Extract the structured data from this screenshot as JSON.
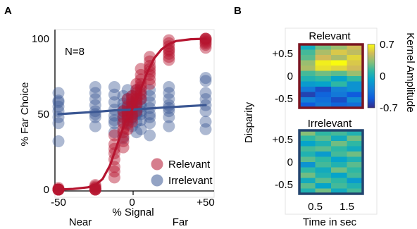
{
  "panels": {
    "a": {
      "letter": "A",
      "annotation": "N=8",
      "ylabel": "% Far Choice",
      "xlabel": "% Signal",
      "near_label": "Near",
      "far_label": "Far"
    },
    "b": {
      "letter": "B",
      "ylabel": "Disparity",
      "xlabel": "Time in sec",
      "colorbar_label": "Kernel Amplitude"
    }
  },
  "colors": {
    "relevant": "#b5142f",
    "irrelevant": "#3b5793",
    "relevant_frame": "#7a1420",
    "irrelevant_frame": "#22446e"
  },
  "chart_data": [
    {
      "type": "scatter",
      "panel": "A",
      "xlabel": "% Signal",
      "ylabel": "% Far Choice",
      "xlim": [
        -55,
        55
      ],
      "ylim": [
        0,
        100
      ],
      "xticks": [
        -50,
        0,
        50
      ],
      "xtick_labels": [
        "-50",
        "0",
        "+50"
      ],
      "yticks": [
        0,
        50,
        100
      ],
      "ytick_labels": [
        "0",
        "50",
        "100"
      ],
      "legend_position": "bottom-right",
      "series": [
        {
          "name": "Relevant",
          "points": [
            {
              "x": -50,
              "y": 0
            },
            {
              "x": -50,
              "y": 0
            },
            {
              "x": -50,
              "y": 0
            },
            {
              "x": -50,
              "y": 0
            },
            {
              "x": -50,
              "y": 0
            },
            {
              "x": -50,
              "y": 0
            },
            {
              "x": -50,
              "y": 1
            },
            {
              "x": -50,
              "y": 0
            },
            {
              "x": -25,
              "y": 0
            },
            {
              "x": -25,
              "y": 1
            },
            {
              "x": -25,
              "y": 0
            },
            {
              "x": -25,
              "y": 2
            },
            {
              "x": -25,
              "y": 0
            },
            {
              "x": -25,
              "y": 1
            },
            {
              "x": -25,
              "y": 3
            },
            {
              "x": -25,
              "y": 0
            },
            {
              "x": -12,
              "y": 8
            },
            {
              "x": -12,
              "y": 15
            },
            {
              "x": -12,
              "y": 20
            },
            {
              "x": -12,
              "y": 24
            },
            {
              "x": -12,
              "y": 30
            },
            {
              "x": -12,
              "y": 36
            },
            {
              "x": -12,
              "y": 12
            },
            {
              "x": -12,
              "y": 27
            },
            {
              "x": -6,
              "y": 28
            },
            {
              "x": -6,
              "y": 35
            },
            {
              "x": -6,
              "y": 40
            },
            {
              "x": -6,
              "y": 44
            },
            {
              "x": -6,
              "y": 48
            },
            {
              "x": -6,
              "y": 52
            },
            {
              "x": -6,
              "y": 32
            },
            {
              "x": -6,
              "y": 38
            },
            {
              "x": -3,
              "y": 40
            },
            {
              "x": -3,
              "y": 46
            },
            {
              "x": -3,
              "y": 50
            },
            {
              "x": -3,
              "y": 55
            },
            {
              "x": -3,
              "y": 60
            },
            {
              "x": -3,
              "y": 43
            },
            {
              "x": -3,
              "y": 52
            },
            {
              "x": -3,
              "y": 48
            },
            {
              "x": 0,
              "y": 45
            },
            {
              "x": 0,
              "y": 50
            },
            {
              "x": 0,
              "y": 55
            },
            {
              "x": 0,
              "y": 60
            },
            {
              "x": 0,
              "y": 48
            },
            {
              "x": 0,
              "y": 53
            },
            {
              "x": 0,
              "y": 58
            },
            {
              "x": 0,
              "y": 62
            },
            {
              "x": 3,
              "y": 52
            },
            {
              "x": 3,
              "y": 58
            },
            {
              "x": 3,
              "y": 62
            },
            {
              "x": 3,
              "y": 66
            },
            {
              "x": 3,
              "y": 70
            },
            {
              "x": 3,
              "y": 56
            },
            {
              "x": 3,
              "y": 64
            },
            {
              "x": 3,
              "y": 60
            },
            {
              "x": 6,
              "y": 60
            },
            {
              "x": 6,
              "y": 66
            },
            {
              "x": 6,
              "y": 70
            },
            {
              "x": 6,
              "y": 76
            },
            {
              "x": 6,
              "y": 80
            },
            {
              "x": 6,
              "y": 63
            },
            {
              "x": 6,
              "y": 73
            },
            {
              "x": 6,
              "y": 68
            },
            {
              "x": 12,
              "y": 70
            },
            {
              "x": 12,
              "y": 76
            },
            {
              "x": 12,
              "y": 80
            },
            {
              "x": 12,
              "y": 85
            },
            {
              "x": 12,
              "y": 82
            },
            {
              "x": 12,
              "y": 73
            },
            {
              "x": 12,
              "y": 78
            },
            {
              "x": 12,
              "y": 88
            },
            {
              "x": 25,
              "y": 86
            },
            {
              "x": 25,
              "y": 90
            },
            {
              "x": 25,
              "y": 93
            },
            {
              "x": 25,
              "y": 95
            },
            {
              "x": 25,
              "y": 97
            },
            {
              "x": 25,
              "y": 88
            },
            {
              "x": 25,
              "y": 92
            },
            {
              "x": 25,
              "y": 99
            },
            {
              "x": 50,
              "y": 94
            },
            {
              "x": 50,
              "y": 97
            },
            {
              "x": 50,
              "y": 99
            },
            {
              "x": 50,
              "y": 100
            },
            {
              "x": 50,
              "y": 100
            },
            {
              "x": 50,
              "y": 96
            },
            {
              "x": 50,
              "y": 98
            },
            {
              "x": 50,
              "y": 100
            }
          ],
          "fit_curve": [
            {
              "x": -50,
              "y": 0
            },
            {
              "x": -40,
              "y": 0.4
            },
            {
              "x": -30,
              "y": 1.5
            },
            {
              "x": -25,
              "y": 3
            },
            {
              "x": -20,
              "y": 7
            },
            {
              "x": -15,
              "y": 16
            },
            {
              "x": -10,
              "y": 30
            },
            {
              "x": -5,
              "y": 44
            },
            {
              "x": 0,
              "y": 53
            },
            {
              "x": 5,
              "y": 64
            },
            {
              "x": 10,
              "y": 77
            },
            {
              "x": 15,
              "y": 87
            },
            {
              "x": 20,
              "y": 93
            },
            {
              "x": 25,
              "y": 96.5
            },
            {
              "x": 30,
              "y": 98.5
            },
            {
              "x": 40,
              "y": 99.7
            },
            {
              "x": 50,
              "y": 100
            }
          ]
        },
        {
          "name": "Irrelevant",
          "points": [
            {
              "x": -50,
              "y": 32
            },
            {
              "x": -50,
              "y": 44
            },
            {
              "x": -50,
              "y": 48
            },
            {
              "x": -50,
              "y": 52
            },
            {
              "x": -50,
              "y": 55
            },
            {
              "x": -50,
              "y": 58
            },
            {
              "x": -50,
              "y": 64
            },
            {
              "x": -50,
              "y": 59
            },
            {
              "x": -25,
              "y": 42
            },
            {
              "x": -25,
              "y": 48
            },
            {
              "x": -25,
              "y": 52
            },
            {
              "x": -25,
              "y": 56
            },
            {
              "x": -25,
              "y": 60
            },
            {
              "x": -25,
              "y": 64
            },
            {
              "x": -25,
              "y": 68
            },
            {
              "x": -25,
              "y": 50
            },
            {
              "x": -12,
              "y": 38
            },
            {
              "x": -12,
              "y": 44
            },
            {
              "x": -12,
              "y": 49
            },
            {
              "x": -12,
              "y": 53
            },
            {
              "x": -12,
              "y": 58
            },
            {
              "x": -12,
              "y": 63
            },
            {
              "x": -12,
              "y": 68
            },
            {
              "x": -12,
              "y": 46
            },
            {
              "x": -6,
              "y": 34
            },
            {
              "x": -6,
              "y": 45
            },
            {
              "x": -6,
              "y": 50
            },
            {
              "x": -6,
              "y": 54
            },
            {
              "x": -6,
              "y": 57
            },
            {
              "x": -6,
              "y": 62
            },
            {
              "x": -6,
              "y": 48
            },
            {
              "x": -6,
              "y": 52
            },
            {
              "x": -3,
              "y": 44
            },
            {
              "x": -3,
              "y": 48
            },
            {
              "x": -3,
              "y": 51
            },
            {
              "x": -3,
              "y": 54
            },
            {
              "x": -3,
              "y": 60
            },
            {
              "x": -3,
              "y": 66
            },
            {
              "x": -3,
              "y": 49
            },
            {
              "x": -3,
              "y": 56
            },
            {
              "x": 0,
              "y": 42
            },
            {
              "x": 0,
              "y": 47
            },
            {
              "x": 0,
              "y": 50
            },
            {
              "x": 0,
              "y": 53
            },
            {
              "x": 0,
              "y": 57
            },
            {
              "x": 0,
              "y": 62
            },
            {
              "x": 0,
              "y": 55
            },
            {
              "x": 0,
              "y": 48
            },
            {
              "x": 3,
              "y": 38
            },
            {
              "x": 3,
              "y": 45
            },
            {
              "x": 3,
              "y": 50
            },
            {
              "x": 3,
              "y": 53
            },
            {
              "x": 3,
              "y": 56
            },
            {
              "x": 3,
              "y": 60
            },
            {
              "x": 3,
              "y": 66
            },
            {
              "x": 3,
              "y": 51
            },
            {
              "x": 6,
              "y": 40
            },
            {
              "x": 6,
              "y": 46
            },
            {
              "x": 6,
              "y": 52
            },
            {
              "x": 6,
              "y": 55
            },
            {
              "x": 6,
              "y": 60
            },
            {
              "x": 6,
              "y": 64
            },
            {
              "x": 6,
              "y": 50
            },
            {
              "x": 6,
              "y": 57
            },
            {
              "x": 12,
              "y": 36
            },
            {
              "x": 12,
              "y": 44
            },
            {
              "x": 12,
              "y": 50
            },
            {
              "x": 12,
              "y": 54
            },
            {
              "x": 12,
              "y": 58
            },
            {
              "x": 12,
              "y": 62
            },
            {
              "x": 12,
              "y": 66
            },
            {
              "x": 12,
              "y": 48
            },
            {
              "x": 25,
              "y": 42
            },
            {
              "x": 25,
              "y": 48
            },
            {
              "x": 25,
              "y": 52
            },
            {
              "x": 25,
              "y": 56
            },
            {
              "x": 25,
              "y": 60
            },
            {
              "x": 25,
              "y": 64
            },
            {
              "x": 25,
              "y": 68
            },
            {
              "x": 25,
              "y": 54
            },
            {
              "x": 50,
              "y": 40
            },
            {
              "x": 50,
              "y": 45
            },
            {
              "x": 50,
              "y": 52
            },
            {
              "x": 50,
              "y": 56
            },
            {
              "x": 50,
              "y": 60
            },
            {
              "x": 50,
              "y": 64
            },
            {
              "x": 50,
              "y": 72
            },
            {
              "x": 50,
              "y": 74
            }
          ],
          "fit_curve": [
            {
              "x": -50,
              "y": 50
            },
            {
              "x": -25,
              "y": 51.5
            },
            {
              "x": -12,
              "y": 52.5
            },
            {
              "x": 0,
              "y": 53
            },
            {
              "x": 12,
              "y": 53.8
            },
            {
              "x": 25,
              "y": 54.6
            },
            {
              "x": 50,
              "y": 56
            }
          ]
        }
      ]
    },
    {
      "type": "heatmap",
      "panel": "B",
      "title": "Relevant",
      "xlabel": "Time in sec",
      "ylabel": "Disparity",
      "x_range": [
        0,
        2
      ],
      "xticks": [
        0.5,
        1.5
      ],
      "xtick_labels": [
        "0.5",
        "1.5"
      ],
      "y_range": [
        -0.7,
        0.7
      ],
      "yticks": [
        0.5,
        0,
        -0.5
      ],
      "ytick_labels": [
        "+0.5",
        "0",
        "-0.5"
      ],
      "values": [
        [
          -0.05,
          0.2,
          0.3,
          0.45
        ],
        [
          0.1,
          0.35,
          0.5,
          0.4
        ],
        [
          0.15,
          0.45,
          0.35,
          0.55
        ],
        [
          0.3,
          0.65,
          0.7,
          0.5
        ],
        [
          0.35,
          0.6,
          0.55,
          0.45
        ],
        [
          0.1,
          0.2,
          0.15,
          0.3
        ],
        [
          0.0,
          0.05,
          -0.1,
          0.05
        ],
        [
          -0.15,
          -0.1,
          0.05,
          -0.2
        ],
        [
          -0.35,
          -0.55,
          -0.3,
          -0.2
        ],
        [
          -0.6,
          -0.45,
          -0.35,
          -0.5
        ],
        [
          -0.3,
          -0.4,
          -0.55,
          -0.25
        ],
        [
          -0.5,
          -0.35,
          -0.45,
          -0.4
        ]
      ]
    },
    {
      "type": "heatmap",
      "panel": "B",
      "title": "Irrelevant",
      "xlabel": "Time in sec",
      "ylabel": "Disparity",
      "x_range": [
        0,
        2
      ],
      "xticks": [
        0.5,
        1.5
      ],
      "xtick_labels": [
        "0.5",
        "1.5"
      ],
      "y_range": [
        -0.7,
        0.7
      ],
      "yticks": [
        0.5,
        0,
        -0.5
      ],
      "ytick_labels": [
        "+0.5",
        "0",
        "-0.5"
      ],
      "values": [
        [
          0.25,
          0.05,
          0.1,
          0.0
        ],
        [
          0.05,
          0.15,
          -0.05,
          0.2
        ],
        [
          -0.1,
          0.0,
          0.2,
          0.05
        ],
        [
          0.1,
          0.15,
          0.05,
          -0.05
        ],
        [
          0.0,
          -0.15,
          0.1,
          0.2
        ],
        [
          0.15,
          0.05,
          -0.1,
          0.0
        ],
        [
          -0.2,
          0.1,
          0.0,
          0.15
        ],
        [
          0.05,
          -0.05,
          0.2,
          0.05
        ],
        [
          0.2,
          0.0,
          -0.1,
          0.1
        ],
        [
          -0.05,
          0.15,
          0.05,
          -0.15
        ],
        [
          0.15,
          -0.1,
          0.1,
          0.0
        ],
        [
          0.0,
          0.2,
          -0.05,
          0.1
        ]
      ]
    },
    {
      "type": "colorbar",
      "panel": "B",
      "label": "Kernel Amplitude",
      "range": [
        -0.7,
        0.7
      ],
      "ticks": [
        0.7,
        0,
        -0.7
      ],
      "tick_labels": [
        "0.7",
        "0",
        "-0.7"
      ],
      "colormap": "parula"
    }
  ]
}
